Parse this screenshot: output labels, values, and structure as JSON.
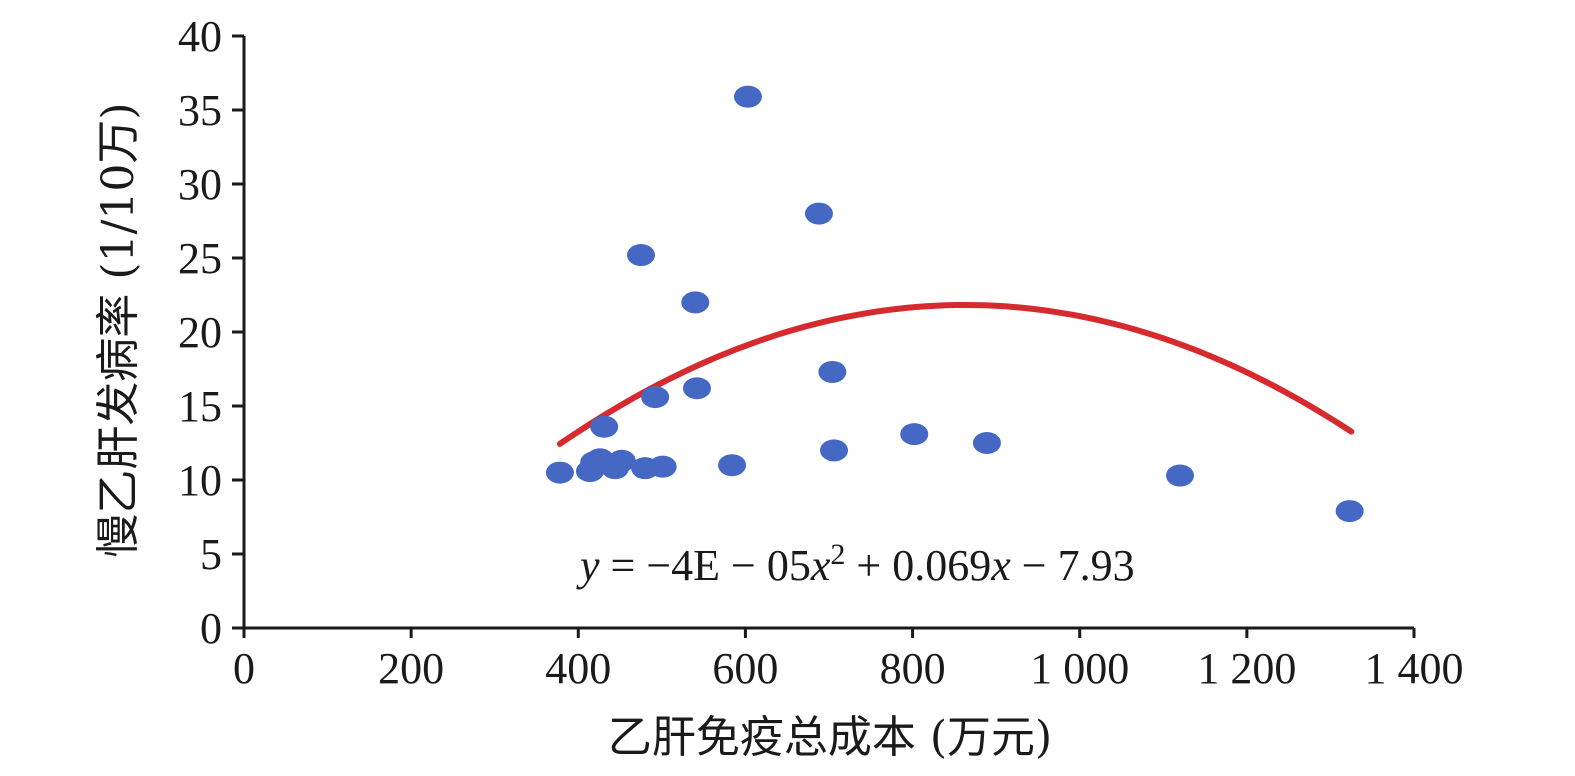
{
  "chart_data": {
    "type": "scatter",
    "xlabel": "乙肝免疫总成本 (万元)",
    "ylabel": "慢乙肝发病率 (1/10万)",
    "xlim": [
      0,
      1400
    ],
    "ylim": [
      0,
      40
    ],
    "x_ticks": [
      0,
      200,
      400,
      600,
      800,
      1000,
      1200,
      1400
    ],
    "x_tick_labels": [
      "0",
      "200",
      "400",
      "600",
      "800",
      "1 000",
      "1 200",
      "1 400"
    ],
    "y_ticks": [
      0,
      5,
      10,
      15,
      20,
      25,
      30,
      35,
      40
    ],
    "y_tick_labels": [
      "0",
      "5",
      "10",
      "15",
      "20",
      "25",
      "30",
      "35",
      "40"
    ],
    "grid": false,
    "point_color": "#4468c4",
    "trend_color": "#d62a2f",
    "series": [
      {
        "points": [
          {
            "x": 378,
            "y": 10.5
          },
          {
            "x": 414,
            "y": 10.6
          },
          {
            "x": 419,
            "y": 11.2
          },
          {
            "x": 426,
            "y": 11.4
          },
          {
            "x": 431,
            "y": 13.6
          },
          {
            "x": 444,
            "y": 10.8
          },
          {
            "x": 452,
            "y": 11.3
          },
          {
            "x": 475,
            "y": 25.2
          },
          {
            "x": 480,
            "y": 10.8
          },
          {
            "x": 492,
            "y": 15.6
          },
          {
            "x": 501,
            "y": 10.9
          },
          {
            "x": 540,
            "y": 22.0
          },
          {
            "x": 542,
            "y": 16.2
          },
          {
            "x": 584,
            "y": 11.0
          },
          {
            "x": 603,
            "y": 35.9
          },
          {
            "x": 688,
            "y": 28.0
          },
          {
            "x": 704,
            "y": 17.3
          },
          {
            "x": 706,
            "y": 12.0
          },
          {
            "x": 802,
            "y": 13.1
          },
          {
            "x": 889,
            "y": 12.5
          },
          {
            "x": 1120,
            "y": 10.3
          },
          {
            "x": 1323,
            "y": 7.9
          }
        ]
      }
    ],
    "trendline": {
      "type": "polynomial",
      "equation_text": {
        "y": "y",
        "eq": " = −4E − 05",
        "x1": "x",
        "sup": "2",
        "mid": " + 0.069",
        "x2": "x",
        "tail": " − 7.93"
      },
      "coefficients": [
        -4e-05,
        0.069,
        -7.93
      ],
      "x_range": [
        378,
        1325
      ]
    }
  }
}
